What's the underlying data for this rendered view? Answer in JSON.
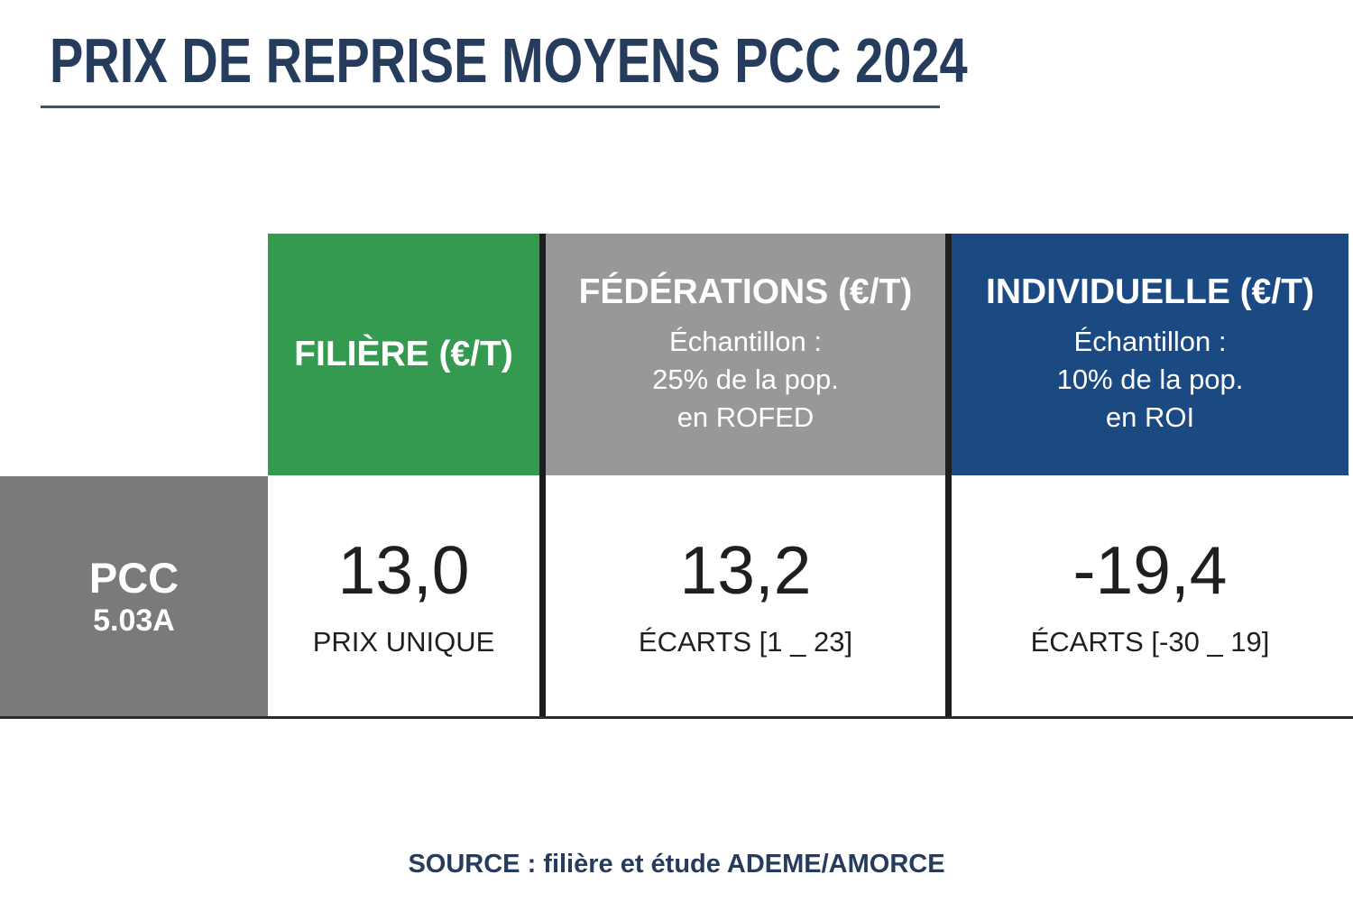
{
  "title": "PRIX DE REPRISE MOYENS PCC 2024",
  "source": "SOURCE : filière et étude ADEME/AMORCE",
  "colors": {
    "navy": "#263c5c",
    "green": "#339a4f",
    "header_gray": "#989898",
    "label_gray": "#7a7a7a",
    "blue": "#1b4a82",
    "divider_black": "#1d1d1d",
    "value_text": "#1f1f1f"
  },
  "table": {
    "row_label": {
      "name": "PCC",
      "code": "5.03A"
    },
    "columns": [
      {
        "id": "filiere",
        "header": "FILIÈRE (€/T)",
        "value": "13,0",
        "value_label": "PRIX UNIQUE"
      },
      {
        "id": "federations",
        "header": "FÉDÉRATIONS (€/T)",
        "subheader_lines": [
          "Échantillon :",
          "25% de la pop.",
          "en ROFED"
        ],
        "value": "13,2",
        "value_label": "ÉCARTS [1 _ 23]"
      },
      {
        "id": "individuelle",
        "header": "INDIVIDUELLE (€/T)",
        "subheader_lines": [
          "Échantillon :",
          "10% de la pop.",
          "en ROI"
        ],
        "value": "-19,4",
        "value_label": "ÉCARTS [-30 _ 19]"
      }
    ]
  },
  "chart_data": {
    "type": "table",
    "title": "PRIX DE REPRISE MOYENS PCC 2024",
    "row": "PCC 5.03A",
    "columns": [
      "FILIÈRE (€/T)",
      "FÉDÉRATIONS (€/T)",
      "INDIVIDUELLE (€/T)"
    ],
    "values": [
      13.0,
      13.2,
      -19.4
    ],
    "value_annotations": [
      "PRIX UNIQUE",
      "ÉCARTS [1 _ 23]",
      "ÉCARTS [-30 _ 19]"
    ],
    "sample_notes": [
      null,
      "Échantillon : 25% de la pop. en ROFED",
      "Échantillon : 10% de la pop. en ROI"
    ],
    "unit": "€/T",
    "source": "SOURCE : filière et étude ADEME/AMORCE"
  }
}
